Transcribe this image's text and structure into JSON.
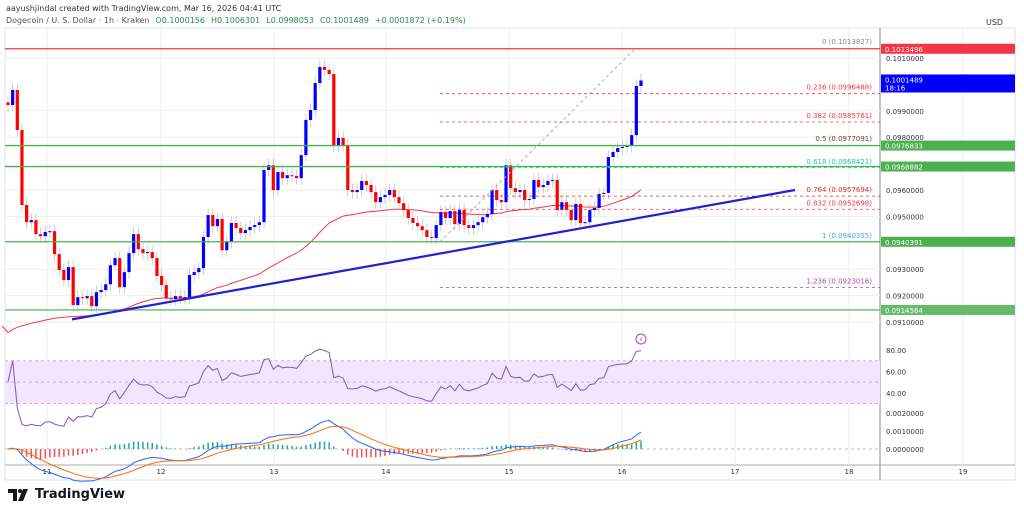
{
  "header": {
    "credit": "aayushjindal created with TradingView.com, Mar 16, 2026 04:41 UTC",
    "symbol": "Dogecoin / U. S. Dollar · 1h · Kraken",
    "open": "O0.1000156",
    "high": "H0.1006301",
    "low": "L0.0998053",
    "close": "C0.1001489",
    "change": "+0.0001872 (+0.19%)"
  },
  "axis": {
    "currency": "USD",
    "countdown": "18:16"
  },
  "logo": "TradingView",
  "colors": {
    "up": "#0000ff",
    "down": "#ff0000",
    "ma": "#f23645",
    "trendline": "#1e22d4",
    "resistance": "#f23645",
    "support": "#4caf50",
    "rsi_band": "#f3e5fc"
  },
  "chart_data": {
    "type": "candlestick",
    "interval": "1h",
    "price_ticks": [
      0.101,
      0.099,
      0.098,
      0.096,
      0.095,
      0.093,
      0.092,
      0.091
    ],
    "price_range": [
      0.0905,
      0.1021
    ],
    "x_ticks": [
      "11",
      "12",
      "13",
      "14",
      "15",
      "16",
      "17",
      "18",
      "19"
    ],
    "closes": [
      0.09922,
      0.09979,
      0.09827,
      0.09543,
      0.09478,
      0.09486,
      0.09433,
      0.09425,
      0.09441,
      0.09444,
      0.09357,
      0.09297,
      0.09259,
      0.09308,
      0.09164,
      0.09194,
      0.0919,
      0.09198,
      0.0916,
      0.09213,
      0.09221,
      0.09243,
      0.09315,
      0.09342,
      0.09232,
      0.09289,
      0.09361,
      0.09433,
      0.09376,
      0.09361,
      0.09365,
      0.09342,
      0.09274,
      0.0924,
      0.0919,
      0.09187,
      0.09198,
      0.0919,
      0.09194,
      0.09278,
      0.09289,
      0.09304,
      0.09422,
      0.09505,
      0.09463,
      0.0949,
      0.09372,
      0.09403,
      0.09475,
      0.09456,
      0.09437,
      0.09448,
      0.0946,
      0.09467,
      0.09478,
      0.09676,
      0.09694,
      0.096,
      0.09668,
      0.09645,
      0.09656,
      0.09653,
      0.09645,
      0.09732,
      0.09865,
      0.09903,
      0.10005,
      0.10066,
      0.10055,
      0.10039,
      0.0977,
      0.09797,
      0.0977,
      0.096,
      0.09592,
      0.096,
      0.09634,
      0.09619,
      0.09592,
      0.09554,
      0.09573,
      0.09581,
      0.096,
      0.09573,
      0.0955,
      0.09524,
      0.09494,
      0.09475,
      0.09463,
      0.09448,
      0.09422,
      0.09418,
      0.09467,
      0.09516,
      0.09494,
      0.0952,
      0.09471,
      0.09524,
      0.09467,
      0.09456,
      0.09467,
      0.09478,
      0.09497,
      0.09509,
      0.096,
      0.09562,
      0.09554,
      0.09694,
      0.09607,
      0.09592,
      0.096,
      0.09562,
      0.09566,
      0.09638,
      0.09611,
      0.09619,
      0.09634,
      0.09638,
      0.09524,
      0.09554,
      0.09524,
      0.09486,
      0.09547,
      0.09475,
      0.09478,
      0.09524,
      0.09532,
      0.09585,
      0.09589,
      0.09725,
      0.09744,
      0.09759,
      0.09763,
      0.09767,
      0.09808,
      0.09994,
      0.1001489
    ],
    "horizontal_levels": [
      {
        "price": 0.1013496,
        "label": "0.1013496",
        "color": "#f23645"
      },
      {
        "price": 0.0976833,
        "label": "0.0976833",
        "color": "#4caf50"
      },
      {
        "price": 0.0968882,
        "label": "0.0968882",
        "color": "#4caf50"
      },
      {
        "price": 0.0940391,
        "label": "0.0940391",
        "color": "#4caf50"
      },
      {
        "price": 0.0914564,
        "label": "0.0914564",
        "color": "#66bb6a"
      }
    ],
    "current_price": {
      "price": 0.1001489,
      "label": "0.1001489"
    },
    "fib_levels": [
      {
        "price": 0.1013827,
        "label": "0 (0.1013827)",
        "color": "#888888",
        "line": false
      },
      {
        "price": 0.0996488,
        "label": "0.236 (0.0996488)",
        "color": "#f23645",
        "line": true
      },
      {
        "price": 0.0985761,
        "label": "0.382 (0.0985761)",
        "color": "#f23645",
        "line": true
      },
      {
        "price": 0.0977091,
        "label": "0.5 (0.0977091)",
        "color": "#7a3b3b",
        "line": false
      },
      {
        "price": 0.0968421,
        "label": "0.618 (0.0968421)",
        "color": "#26c6a0",
        "line": true
      },
      {
        "price": 0.0957694,
        "label": "0.764 (0.0957694)",
        "color": "#d32f2f",
        "line": true
      },
      {
        "price": 0.0952698,
        "label": "0.832 (0.0952698)",
        "color": "#f23645",
        "line": true
      },
      {
        "price": 0.0940355,
        "label": "1 (0.0940355)",
        "color": "#42a5f5",
        "line": false
      },
      {
        "price": 0.0923016,
        "label": "1.236 (0.0923016)",
        "color": "#ab47bc",
        "line": true
      }
    ],
    "support_trendline": {
      "start_price": 0.0911,
      "end_price": 0.096
    },
    "rsi": {
      "ticks": [
        "80.00",
        "60.00",
        "40.00"
      ],
      "band": [
        30,
        70
      ]
    },
    "macd": {
      "ticks": [
        "0.0020000",
        "0.0010000",
        "0.0000000"
      ]
    }
  }
}
